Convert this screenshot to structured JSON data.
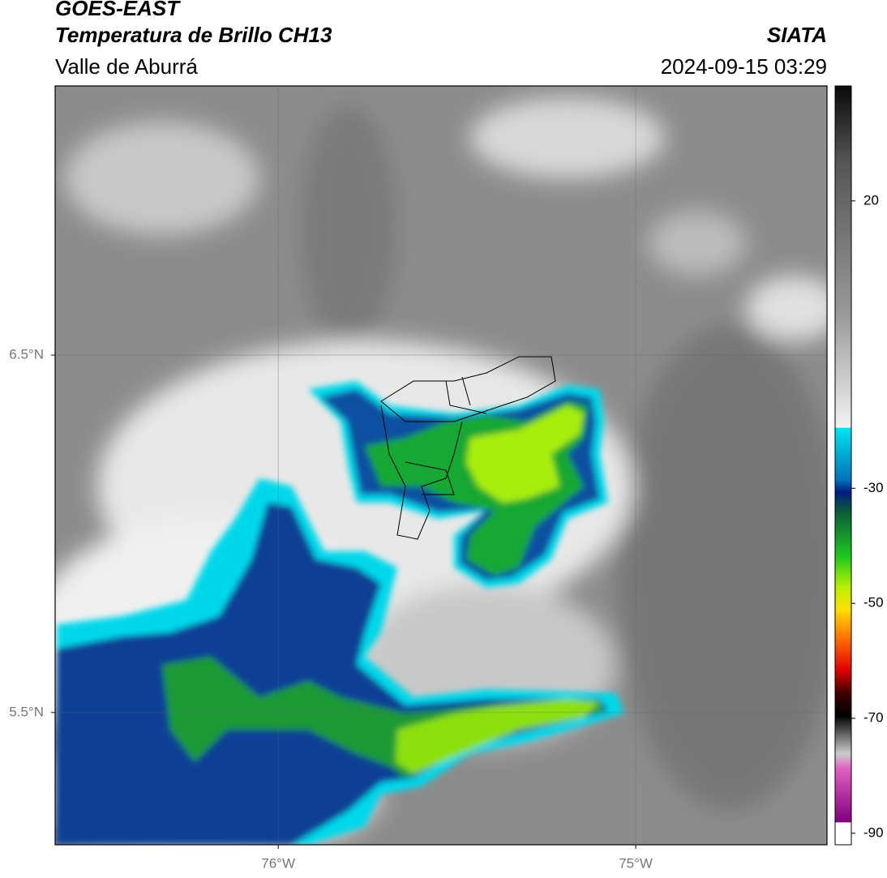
{
  "header": {
    "satellite": "GOES-EAST",
    "product": "Temperatura de Brillo CH13",
    "source": "SIATA",
    "region": "Valle de Aburrá",
    "datetime": "2024-09-15 03:29"
  },
  "map": {
    "lon_range": [
      -76.624,
      -74.465
    ],
    "lat_range": [
      5.13,
      7.253
    ],
    "lat_ticks": [
      {
        "value": 6.5,
        "label": "6.5°N"
      },
      {
        "value": 5.5,
        "label": "5.5°N"
      }
    ],
    "lon_ticks": [
      {
        "value": -76,
        "label": "76°W"
      },
      {
        "value": -75,
        "label": "75°W"
      }
    ]
  },
  "colorbar": {
    "range": [
      -92,
      40
    ],
    "ticks": [
      20,
      -30,
      -50,
      -70,
      -90
    ]
  }
}
